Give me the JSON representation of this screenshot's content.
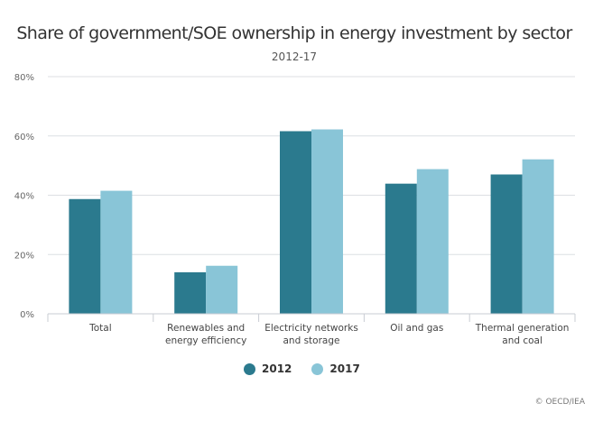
{
  "chart_data": {
    "type": "bar",
    "title": "Share of government/SOE ownership in energy investment by sector",
    "subtitle": "2012-17",
    "xlabel": "",
    "ylabel": "",
    "categories": [
      [
        "Total"
      ],
      [
        "Renewables and",
        "energy efficiency"
      ],
      [
        "Electricity networks",
        "and storage"
      ],
      [
        "Oil and gas"
      ],
      [
        "Thermal generation",
        "and coal"
      ]
    ],
    "series": [
      {
        "name": "2012",
        "color": "#2b7a8e",
        "values": [
          38.7,
          14.0,
          61.6,
          43.9,
          47.0
        ]
      },
      {
        "name": "2017",
        "color": "#89c5d7",
        "values": [
          41.5,
          16.2,
          62.2,
          48.8,
          52.1
        ]
      }
    ],
    "ylim": [
      0,
      80
    ],
    "yticks": [
      0,
      20,
      40,
      60,
      80
    ],
    "ytick_labels": [
      "0%",
      "20%",
      "40%",
      "60%",
      "80%"
    ],
    "grid": true,
    "legend_position": "bottom-center"
  },
  "credit": "© OECD/IEA"
}
